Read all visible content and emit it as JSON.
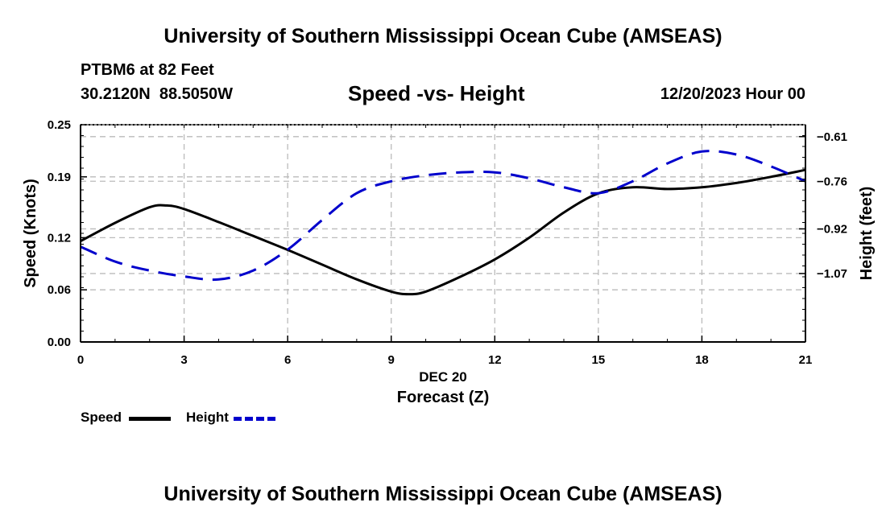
{
  "header": {
    "title": "University of Southern Mississippi Ocean Cube (AMSEAS)",
    "station": "PTBM6 at 82 Feet",
    "coords": "30.2120N  88.5050W",
    "chart_title": "Speed -vs- Height",
    "date": "12/20/2023 Hour 00"
  },
  "footer": {
    "title": "University of Southern Mississippi Ocean Cube (AMSEAS)"
  },
  "legend": {
    "speed": "Speed",
    "height": "Height"
  },
  "colors": {
    "speed": "#000000",
    "height": "#0000cc",
    "grid": "#bbbbbb"
  },
  "chart_data": {
    "type": "line",
    "title": "Speed -vs- Height",
    "xlabel": "Forecast (Z)",
    "xsublabel": "DEC 20",
    "ylabel": "Speed (Knots)",
    "y2label": "Height (feet)",
    "xlim": [
      0,
      21
    ],
    "ylim": [
      0,
      0.25
    ],
    "y2lim": [
      -1.3,
      -0.57
    ],
    "grid": true,
    "legend_position": "bottom-left",
    "xticks": [
      0,
      3,
      6,
      9,
      12,
      15,
      18,
      21
    ],
    "xtick_labels": [
      "0",
      "3",
      "6",
      "9",
      "12",
      "15",
      "18",
      "21"
    ],
    "yticks": [
      0,
      0.06,
      0.12,
      0.19,
      0.25
    ],
    "ytick_labels": [
      "0.00",
      "0.06",
      "0.12",
      "0.19",
      "0.25"
    ],
    "y2ticks": [
      -1.07,
      -0.92,
      -0.76,
      -0.61
    ],
    "y2tick_labels": [
      "−1.07",
      "−0.92",
      "−0.76",
      "−0.61"
    ],
    "series": [
      {
        "name": "Speed",
        "axis": "left",
        "style": "solid",
        "x": [
          0,
          1,
          2,
          2.5,
          3,
          4,
          5,
          6,
          7,
          8,
          9,
          9.5,
          10,
          11,
          12,
          13,
          14,
          15,
          16,
          17,
          18,
          19,
          20,
          21
        ],
        "values": [
          0.116,
          0.137,
          0.155,
          0.157,
          0.153,
          0.138,
          0.122,
          0.106,
          0.089,
          0.072,
          0.058,
          0.055,
          0.058,
          0.075,
          0.095,
          0.12,
          0.149,
          0.171,
          0.178,
          0.176,
          0.178,
          0.183,
          0.19,
          0.198
        ]
      },
      {
        "name": "Height",
        "axis": "right",
        "style": "dashed",
        "x": [
          0,
          1,
          2,
          3,
          4,
          5,
          6,
          7,
          8,
          9,
          10,
          11,
          12,
          13,
          14,
          15,
          16,
          17,
          18,
          19,
          20,
          21
        ],
        "values": [
          -0.98,
          -1.03,
          -1.06,
          -1.08,
          -1.09,
          -1.06,
          -0.99,
          -0.89,
          -0.8,
          -0.76,
          -0.74,
          -0.73,
          -0.73,
          -0.75,
          -0.78,
          -0.8,
          -0.76,
          -0.7,
          -0.66,
          -0.67,
          -0.71,
          -0.76
        ]
      }
    ]
  }
}
